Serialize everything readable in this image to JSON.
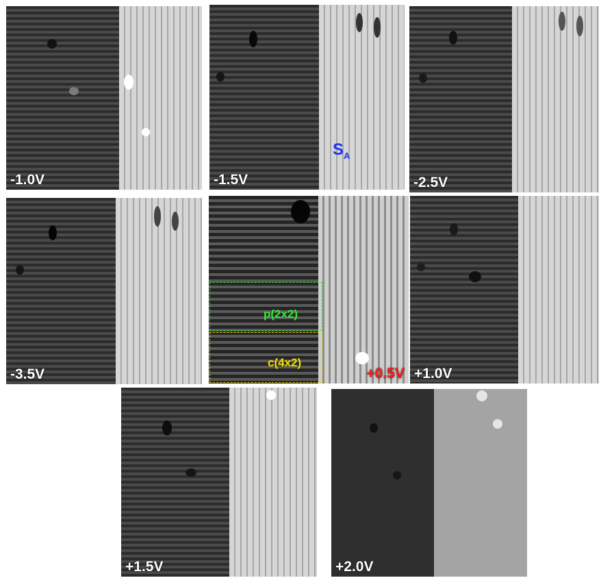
{
  "panels": [
    {
      "id": "p1",
      "voltage": "-1.0V"
    },
    {
      "id": "p2",
      "voltage": "-1.5V"
    },
    {
      "id": "p3",
      "voltage": "-2.5V"
    },
    {
      "id": "p4",
      "voltage": "-3.5V"
    },
    {
      "id": "p5",
      "voltage": "+0.5V"
    },
    {
      "id": "p6",
      "voltage": "+1.0V"
    },
    {
      "id": "p7",
      "voltage": "+1.5V"
    },
    {
      "id": "p8",
      "voltage": "+2.0V"
    }
  ],
  "annotations": {
    "site_label": "S",
    "site_subscript": "A",
    "region_p2x2": "p(2x2)",
    "region_c4x2": "c(4x2)"
  },
  "colors": {
    "voltage_label": "#ffffff",
    "highlight_voltage": "#ff1a1a",
    "site_label": "#2233ee",
    "p2x2_box": "#33dd33",
    "c4x2_box": "#e6d800"
  }
}
